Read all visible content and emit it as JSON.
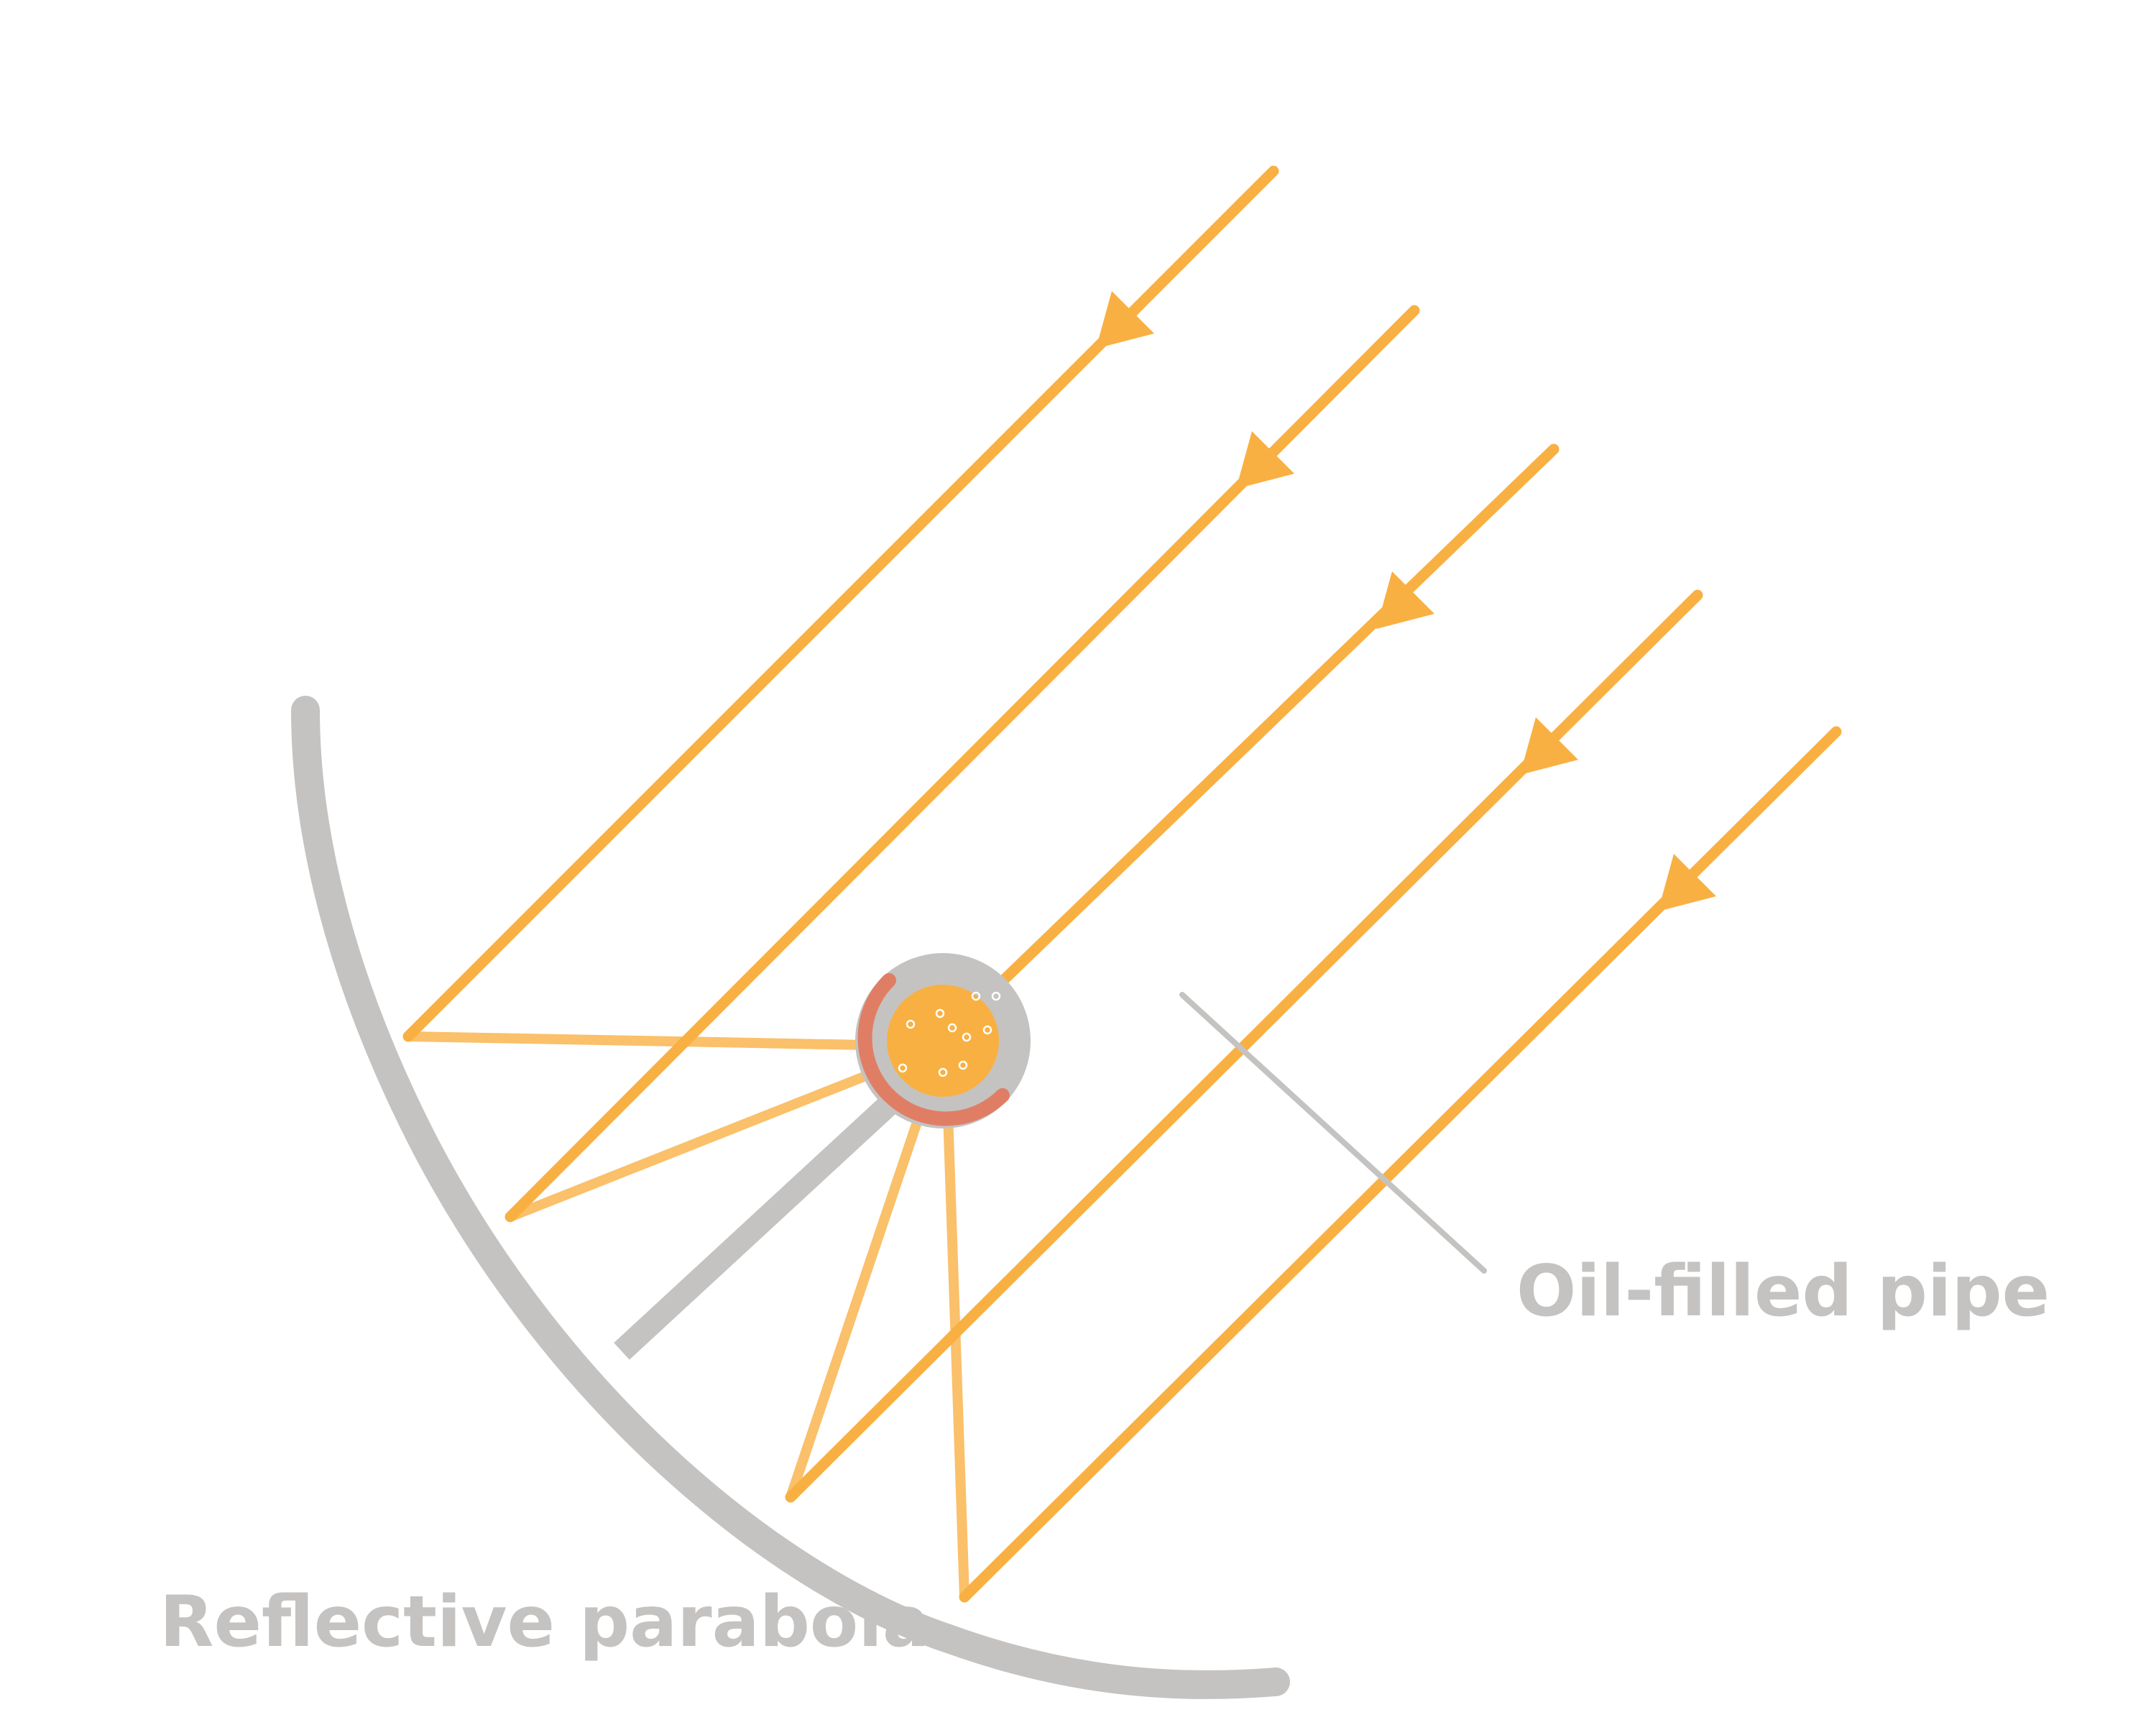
{
  "diagram": {
    "labels": {
      "pipe": "Oil-filled pipe",
      "parabola": "Reflective parabola"
    },
    "colors": {
      "ray": "#f9b042",
      "reflected_ray": "#fac06a",
      "parabola": "#c4c3c1",
      "pipe_shell": "#c4c3c1",
      "oil": "#f9b042",
      "heat_arc": "#e07e65",
      "leader_line": "#c4c3c1",
      "background": "#ffffff"
    },
    "incoming_ray_count": 5,
    "icons": [
      "arrowhead-icon",
      "oil-bubble-icon"
    ]
  }
}
